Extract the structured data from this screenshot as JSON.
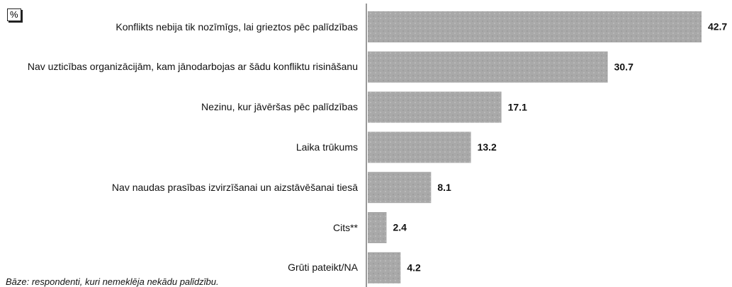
{
  "chart_data": {
    "type": "barh",
    "unit_label": "%",
    "footnote": "Bāze: respondenti, kuri nemeklēja nekādu palīdzību.",
    "categories": [
      "Konflikts nebija tik nozīmīgs, lai grieztos pēc palīdzības",
      "Nav uzticības organizācijām, kam jānodarbojas ar šādu konfliktu risināšanu",
      "Nezinu, kur jāvēršas pēc palīdzības",
      "Laika trūkums",
      "Nav naudas prasības izvirzīšanai un aizstāvēšanai tiesā",
      "Cits**",
      "Grūti pateikt/NA"
    ],
    "values": [
      42.7,
      30.7,
      17.1,
      13.2,
      8.1,
      2.4,
      4.2
    ],
    "color": "#a9a9a9"
  }
}
